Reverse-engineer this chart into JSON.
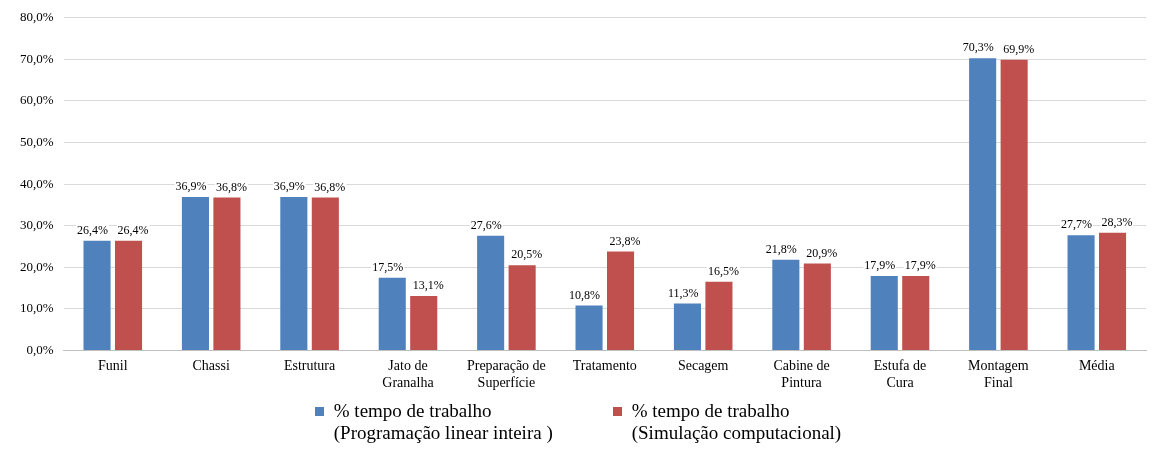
{
  "chart_data": {
    "type": "bar",
    "categories": [
      "Funil",
      "Chassi",
      "Estrutura",
      "Jato de\nGranalha",
      "Preparação de\nSuperfície",
      "Tratamento",
      "Secagem",
      "Cabine de\nPintura",
      "Estufa de\nCura",
      "Montagem\nFinal",
      "Média"
    ],
    "series": [
      {
        "name": "% tempo de trabalho\n(Programação linear inteira )",
        "color": "#4f81bd",
        "values": [
          26.4,
          36.9,
          36.9,
          17.5,
          27.6,
          10.8,
          11.3,
          21.8,
          17.9,
          70.3,
          27.7
        ],
        "value_labels": [
          "26,4%",
          "36,9%",
          "36,9%",
          "17,5%",
          "27,6%",
          "10,8%",
          "11,3%",
          "21,8%",
          "17,9%",
          "70,3%",
          "27,7%"
        ]
      },
      {
        "name": "% tempo de trabalho\n(Simulação computacional)",
        "color": "#c0504d",
        "values": [
          26.4,
          36.8,
          36.8,
          13.1,
          20.5,
          23.8,
          16.5,
          20.9,
          17.9,
          69.9,
          28.3
        ],
        "value_labels": [
          "26,4%",
          "36,8%",
          "36,8%",
          "13,1%",
          "20,5%",
          "23,8%",
          "16,5%",
          "20,9%",
          "17,9%",
          "69,9%",
          "28,3%"
        ]
      }
    ],
    "ylim": [
      0,
      80
    ],
    "yticks": [
      {
        "value": 0,
        "label": "0,0%"
      },
      {
        "value": 10,
        "label": "10,0%"
      },
      {
        "value": 20,
        "label": "20,0%"
      },
      {
        "value": 30,
        "label": "30,0%"
      },
      {
        "value": 40,
        "label": "40,0%"
      },
      {
        "value": 50,
        "label": "50,0%"
      },
      {
        "value": 60,
        "label": "60,0%"
      },
      {
        "value": 70,
        "label": "70,0%"
      },
      {
        "value": 80,
        "label": "80,0%"
      }
    ],
    "grid": "y",
    "legend": "bottom"
  }
}
